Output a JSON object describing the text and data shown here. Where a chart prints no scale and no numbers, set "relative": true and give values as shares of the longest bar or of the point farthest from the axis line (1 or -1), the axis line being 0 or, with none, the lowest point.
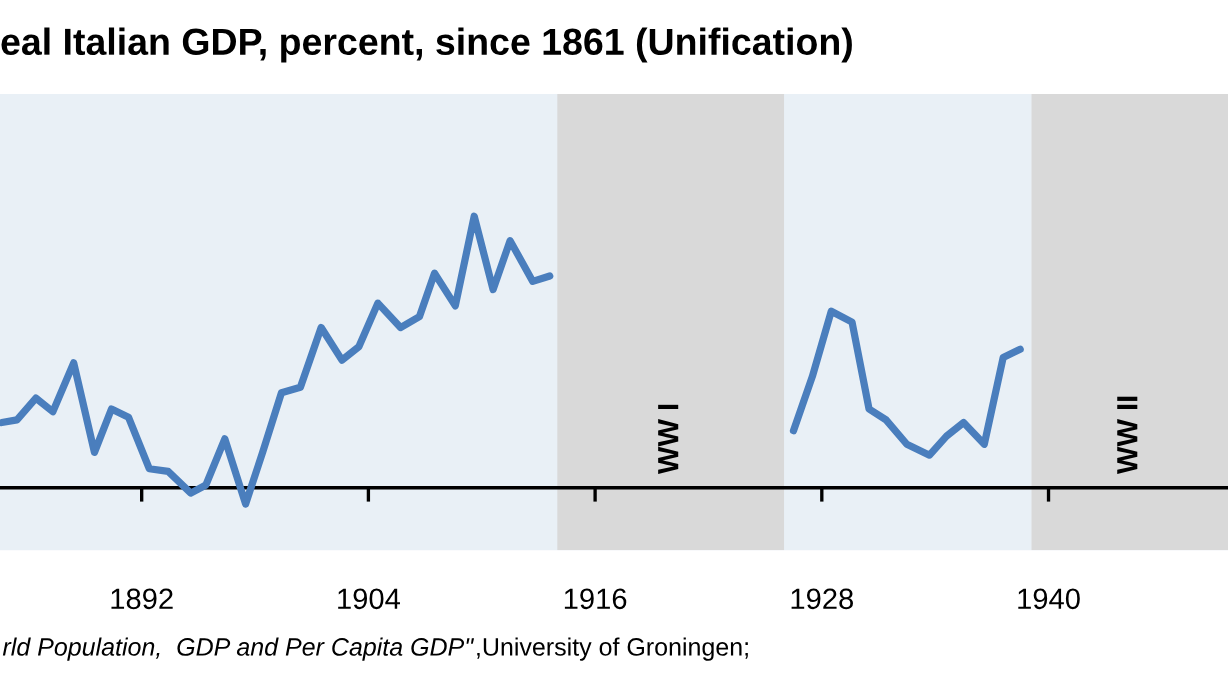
{
  "chart_data": {
    "type": "line",
    "title": "eal Italian GDP, percent, since 1861 (Unification)",
    "relative": true,
    "x": [
      1884.6,
      1885.4,
      1886.4,
      1887.3,
      1888.4,
      1889.5,
      1890.4,
      1891.3,
      1892.4,
      1893.4,
      1894.6,
      1895.4,
      1896.4,
      1897.5,
      1898.4,
      1899.4,
      1900.4,
      1901.5,
      1902.6,
      1903.5,
      1904.5,
      1905.7,
      1906.7,
      1907.5,
      1908.6,
      1909.6,
      1910.6,
      1911.5,
      1912.7,
      1913.6,
      1920,
      1926.5,
      1927.5,
      1928.5,
      1929.6,
      1930.5,
      1931.4,
      1932.5,
      1933.7,
      1934.6,
      1935.5,
      1936.6,
      1937.6,
      1938.5
    ],
    "series": [
      {
        "color": "#4a7ebd",
        "values": [
          0.24,
          0.25,
          0.33,
          0.28,
          0.46,
          0.13,
          0.29,
          0.26,
          0.07,
          0.06,
          -0.02,
          0.01,
          0.18,
          -0.06,
          0.13,
          0.35,
          0.37,
          0.59,
          0.47,
          0.52,
          0.68,
          0.59,
          0.63,
          0.79,
          0.67,
          1,
          0.73,
          0.91,
          0.76,
          0.78,
          null,
          0.21,
          0.41,
          0.65,
          0.61,
          0.29,
          0.25,
          0.16,
          0.12,
          0.19,
          0.24,
          0.16,
          0.48,
          0.51
        ]
      }
    ],
    "xlim": [
      1884.5,
      1949.5
    ],
    "xticks": [
      1892,
      1904,
      1916,
      1928,
      1940
    ],
    "bands": [
      {
        "axis": "x",
        "from": 1914.0,
        "to": 1926.0,
        "label": "WW I",
        "color": "#d9d9d9"
      },
      {
        "axis": "x",
        "from": 1939.1,
        "to": 1949.5,
        "label": "WW II",
        "color": "#d9d9d9"
      }
    ],
    "annotations": [
      "rld Population,  GDP and Per Capita GDP\"",
      ",University of Groningen;"
    ],
    "grid": false,
    "legend": false,
    "marker": "none",
    "line_style": "solid"
  }
}
